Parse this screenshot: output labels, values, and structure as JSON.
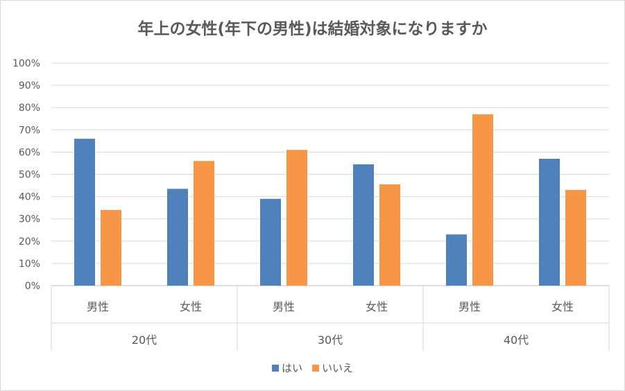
{
  "chart_data": {
    "type": "bar",
    "title": "年上の女性(年下の男性)は結婚対象になりますか",
    "ylim": [
      0,
      100
    ],
    "yticks": [
      "0%",
      "10%",
      "20%",
      "30%",
      "40%",
      "50%",
      "60%",
      "70%",
      "80%",
      "90%",
      "100%"
    ],
    "groups": [
      {
        "label": "20代",
        "categories": [
          "男性",
          "女性"
        ]
      },
      {
        "label": "30代",
        "categories": [
          "男性",
          "女性"
        ]
      },
      {
        "label": "40代",
        "categories": [
          "男性",
          "女性"
        ]
      }
    ],
    "series": [
      {
        "name": "はい",
        "color": "#4f81bd",
        "values": [
          66,
          43.5,
          39,
          54.5,
          23,
          57
        ]
      },
      {
        "name": "いいえ",
        "color": "#f79646",
        "values": [
          34,
          56,
          61,
          45.5,
          77,
          43
        ]
      }
    ],
    "grid": true,
    "legend": "bottom"
  }
}
